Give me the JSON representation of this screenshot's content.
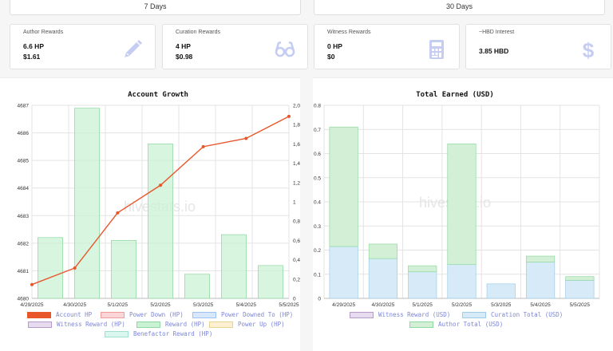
{
  "tabs": [
    {
      "label": "7 Days"
    },
    {
      "label": "30 Days"
    }
  ],
  "cards": [
    {
      "title": "Author Rewards",
      "line1": "6.6 HP",
      "line2": "$1.61",
      "icon": "pencil-icon"
    },
    {
      "title": "Curation Rewards",
      "line1": "4 HP",
      "line2": "$0.98",
      "icon": "glasses-icon"
    },
    {
      "title": "Witness Rewards",
      "line1": "0 HP",
      "line2": "$0",
      "icon": "calculator-icon"
    },
    {
      "title": "~HBD Interest",
      "line1": "3.85 HBD",
      "line2": "",
      "icon": "dollar-icon"
    }
  ],
  "watermark": "hivestats.io",
  "colors": {
    "accountHp": "#e8572a",
    "reward": "#c9f2d4",
    "rewardBorder": "#8fd8a2",
    "curation": "#d6ebf7",
    "curationBorder": "#9fcce6",
    "authorTotal": "#d3f0d6",
    "authorTotalBorder": "#8fd8a2",
    "legendText": "#7d86d8"
  },
  "chart_data": [
    {
      "type": "bar",
      "title": "Account Growth",
      "categories": [
        "4/29/2025",
        "4/30/2025",
        "5/1/2025",
        "5/2/2025",
        "5/3/2025",
        "5/4/2025",
        "5/5/2025"
      ],
      "y_left": {
        "range": [
          4680,
          4687
        ],
        "ticks": [
          "4680",
          "4681",
          "4682",
          "4683",
          "4684",
          "4685",
          "4686",
          "4687"
        ]
      },
      "y_right": {
        "range": [
          0,
          2
        ],
        "ticks": [
          "0",
          "0,2",
          "0,4",
          "0,6",
          "0,8",
          "1",
          "1,2",
          "1,4",
          "1,6",
          "1,8",
          "2,0"
        ]
      },
      "series": [
        {
          "name": "Account HP",
          "type": "line",
          "axis": "left",
          "values": [
            4680.5,
            4681.1,
            4683.1,
            4684.1,
            4685.5,
            4685.8,
            4686.6
          ]
        },
        {
          "name": "Reward (HP)",
          "type": "bar",
          "axis": "right",
          "values": [
            0.63,
            1.97,
            0.6,
            1.6,
            0.25,
            0.66,
            0.34
          ]
        }
      ],
      "legend": [
        {
          "name": "Account HP",
          "fill": "#e8572a",
          "stroke": "#e8572a"
        },
        {
          "name": "Power Down (HP)",
          "fill": "#fbd6d6",
          "stroke": "#f19b9b"
        },
        {
          "name": "Power Downed To (HP)",
          "fill": "#d8e8fb",
          "stroke": "#9fc2ee"
        },
        {
          "name": "Witness Reward (HP)",
          "fill": "#e7dcef",
          "stroke": "#b79acb"
        },
        {
          "name": "Reward (HP)",
          "fill": "#c9f2d4",
          "stroke": "#8fd8a2"
        },
        {
          "name": "Power Up (HP)",
          "fill": "#fbf1d2",
          "stroke": "#e9d48c"
        },
        {
          "name": "Benefactor Reward (HP)",
          "fill": "#d9f6ef",
          "stroke": "#9fe0cf"
        }
      ]
    },
    {
      "type": "bar",
      "title": "Total Earned (USD)",
      "categories": [
        "4/29/2025",
        "4/30/2025",
        "5/1/2025",
        "5/2/2025",
        "5/3/2025",
        "5/4/2025",
        "5/5/2025"
      ],
      "y": {
        "range": [
          0,
          0.8
        ],
        "ticks": [
          "0",
          "0.1",
          "0.2",
          "0.3",
          "0.4",
          "0.5",
          "0.6",
          "0.7",
          "0.8"
        ]
      },
      "series": [
        {
          "name": "Witness Reward (USD)",
          "values": [
            0,
            0,
            0,
            0,
            0,
            0,
            0
          ]
        },
        {
          "name": "Curation Total (USD)",
          "values": [
            0.215,
            0.165,
            0.11,
            0.14,
            0.06,
            0.15,
            0.075
          ]
        },
        {
          "name": "Author Total (USD)",
          "values": [
            0.495,
            0.06,
            0.025,
            0.5,
            0,
            0.025,
            0.015
          ]
        }
      ],
      "legend": [
        {
          "name": "Witness Reward (USD)",
          "fill": "#e7dcef",
          "stroke": "#b79acb"
        },
        {
          "name": "Curation Total (USD)",
          "fill": "#d6ebf7",
          "stroke": "#9fcce6"
        },
        {
          "name": "Author Total (USD)",
          "fill": "#d3f0d6",
          "stroke": "#8fd8a2"
        }
      ]
    }
  ]
}
